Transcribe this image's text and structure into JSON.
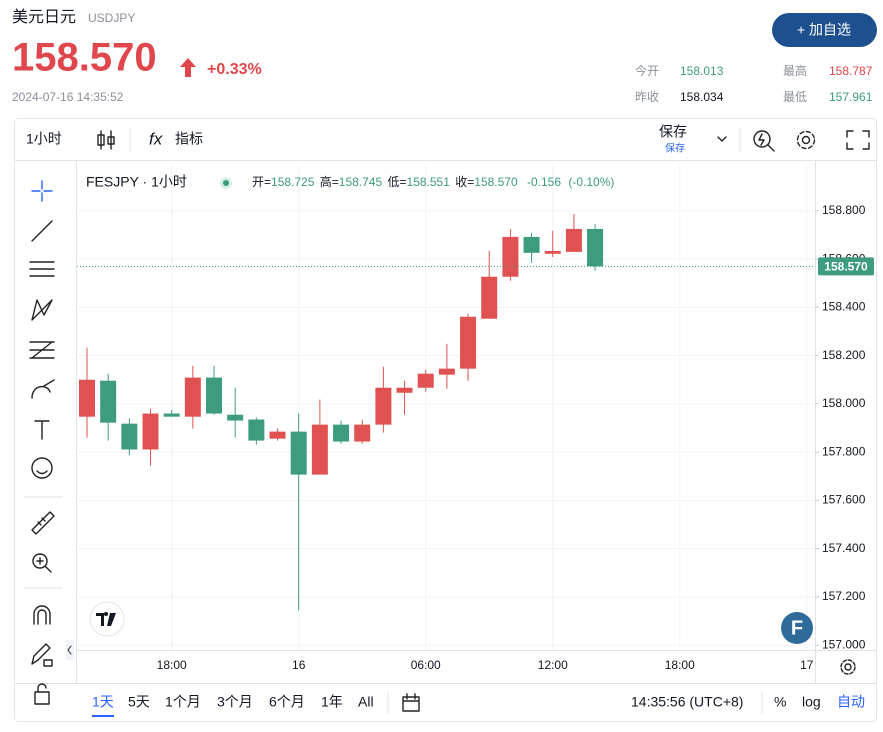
{
  "header": {
    "name": "美元日元",
    "symbol": "USDJPY",
    "price": "158.570",
    "change": "+0.33%",
    "timestamp": "2024-07-16 14:35:52",
    "watch_button": "+ 加自选",
    "stats": [
      {
        "label": "今开",
        "value": "158.013"
      },
      {
        "label": "最高",
        "value": "158.787"
      },
      {
        "label": "昨收",
        "value": "158.034"
      },
      {
        "label": "最低",
        "value": "157.961"
      }
    ]
  },
  "toolbar": {
    "interval": "1小时",
    "indicator_icon": "fx",
    "indicators": "指标",
    "save": "保存",
    "save_sub": "保存"
  },
  "logo_badge": "F",
  "chart_data": {
    "type": "candlestick",
    "title": "FESJPY · 1小时",
    "categories": [
      null,
      null,
      null,
      null,
      "18:00",
      null,
      null,
      null,
      null,
      null,
      "16",
      null,
      null,
      null,
      null,
      null,
      "06:00",
      null,
      null,
      null,
      null,
      null,
      "12:00",
      null,
      null,
      null,
      null,
      null,
      "18:00",
      null,
      null,
      null,
      null,
      null,
      "17"
    ],
    "open": [
      157.947,
      158.096,
      157.918,
      157.811,
      157.96,
      157.947,
      158.109,
      157.955,
      157.935,
      157.856,
      157.885,
      157.707,
      157.914,
      157.844,
      157.914,
      158.046,
      158.067,
      158.121,
      158.146,
      158.353,
      158.527,
      158.692,
      158.622,
      158.63,
      158.725,
      null,
      null,
      null,
      null,
      null,
      null,
      null,
      null,
      null,
      null
    ],
    "high": [
      158.233,
      158.125,
      157.939,
      157.98,
      157.976,
      158.158,
      158.158,
      158.067,
      157.943,
      157.898,
      157.96,
      158.018,
      157.931,
      157.935,
      158.154,
      158.096,
      158.142,
      158.249,
      158.374,
      158.634,
      158.725,
      158.709,
      158.717,
      158.787,
      158.745,
      null,
      null,
      null,
      null,
      null,
      null,
      null,
      null,
      null,
      null
    ],
    "low": [
      157.86,
      157.848,
      157.786,
      157.744,
      157.947,
      157.898,
      157.955,
      157.86,
      157.831,
      157.848,
      157.144,
      157.707,
      157.835,
      157.835,
      157.881,
      157.955,
      158.051,
      158.063,
      158.096,
      158.353,
      158.51,
      158.585,
      158.609,
      158.63,
      158.551,
      null,
      null,
      null,
      null,
      null,
      null,
      null,
      null,
      null,
      null
    ],
    "close": [
      158.1,
      157.922,
      157.811,
      157.96,
      157.947,
      158.109,
      157.96,
      157.931,
      157.848,
      157.885,
      157.707,
      157.914,
      157.844,
      157.914,
      158.067,
      158.067,
      158.125,
      158.146,
      158.361,
      158.527,
      158.692,
      158.626,
      158.634,
      158.725,
      158.57,
      null,
      null,
      null,
      null,
      null,
      null,
      null,
      null,
      null,
      null
    ],
    "up_color": "#e05252",
    "down_color": "#3d9b80",
    "ylim": [
      156.98,
      158.99
    ],
    "yticks": [
      {
        "value": 157,
        "label": "157.000"
      },
      {
        "value": 157.2,
        "label": "157.200"
      },
      {
        "value": 157.4,
        "label": "157.400"
      },
      {
        "value": 157.6,
        "label": "157.600"
      },
      {
        "value": 157.8,
        "label": "157.800"
      },
      {
        "value": 158,
        "label": "158.000"
      },
      {
        "value": 158.2,
        "label": "158.200"
      },
      {
        "value": 158.4,
        "label": "158.400"
      },
      {
        "value": 158.6,
        "label": "158.600"
      },
      {
        "value": 158.8,
        "label": "158.800"
      }
    ],
    "grid": true,
    "last_price": {
      "value": 158.57,
      "label": "158.570"
    },
    "legend": [
      {
        "label": "开=",
        "value": "158.725"
      },
      {
        "label": "高=",
        "value": "158.745"
      },
      {
        "label": "低=",
        "value": "158.551"
      },
      {
        "label": "收=",
        "value": "158.570"
      }
    ],
    "change": -0.156,
    "change_pct": "(-0.10%)"
  },
  "bottom_bar": {
    "ranges": [
      "1天",
      "5天",
      "1个月",
      "3个月",
      "6个月",
      "1年",
      "All"
    ],
    "time": "14:35:56 (UTC+8)",
    "percent": "%",
    "log": "log",
    "auto": "自动"
  }
}
